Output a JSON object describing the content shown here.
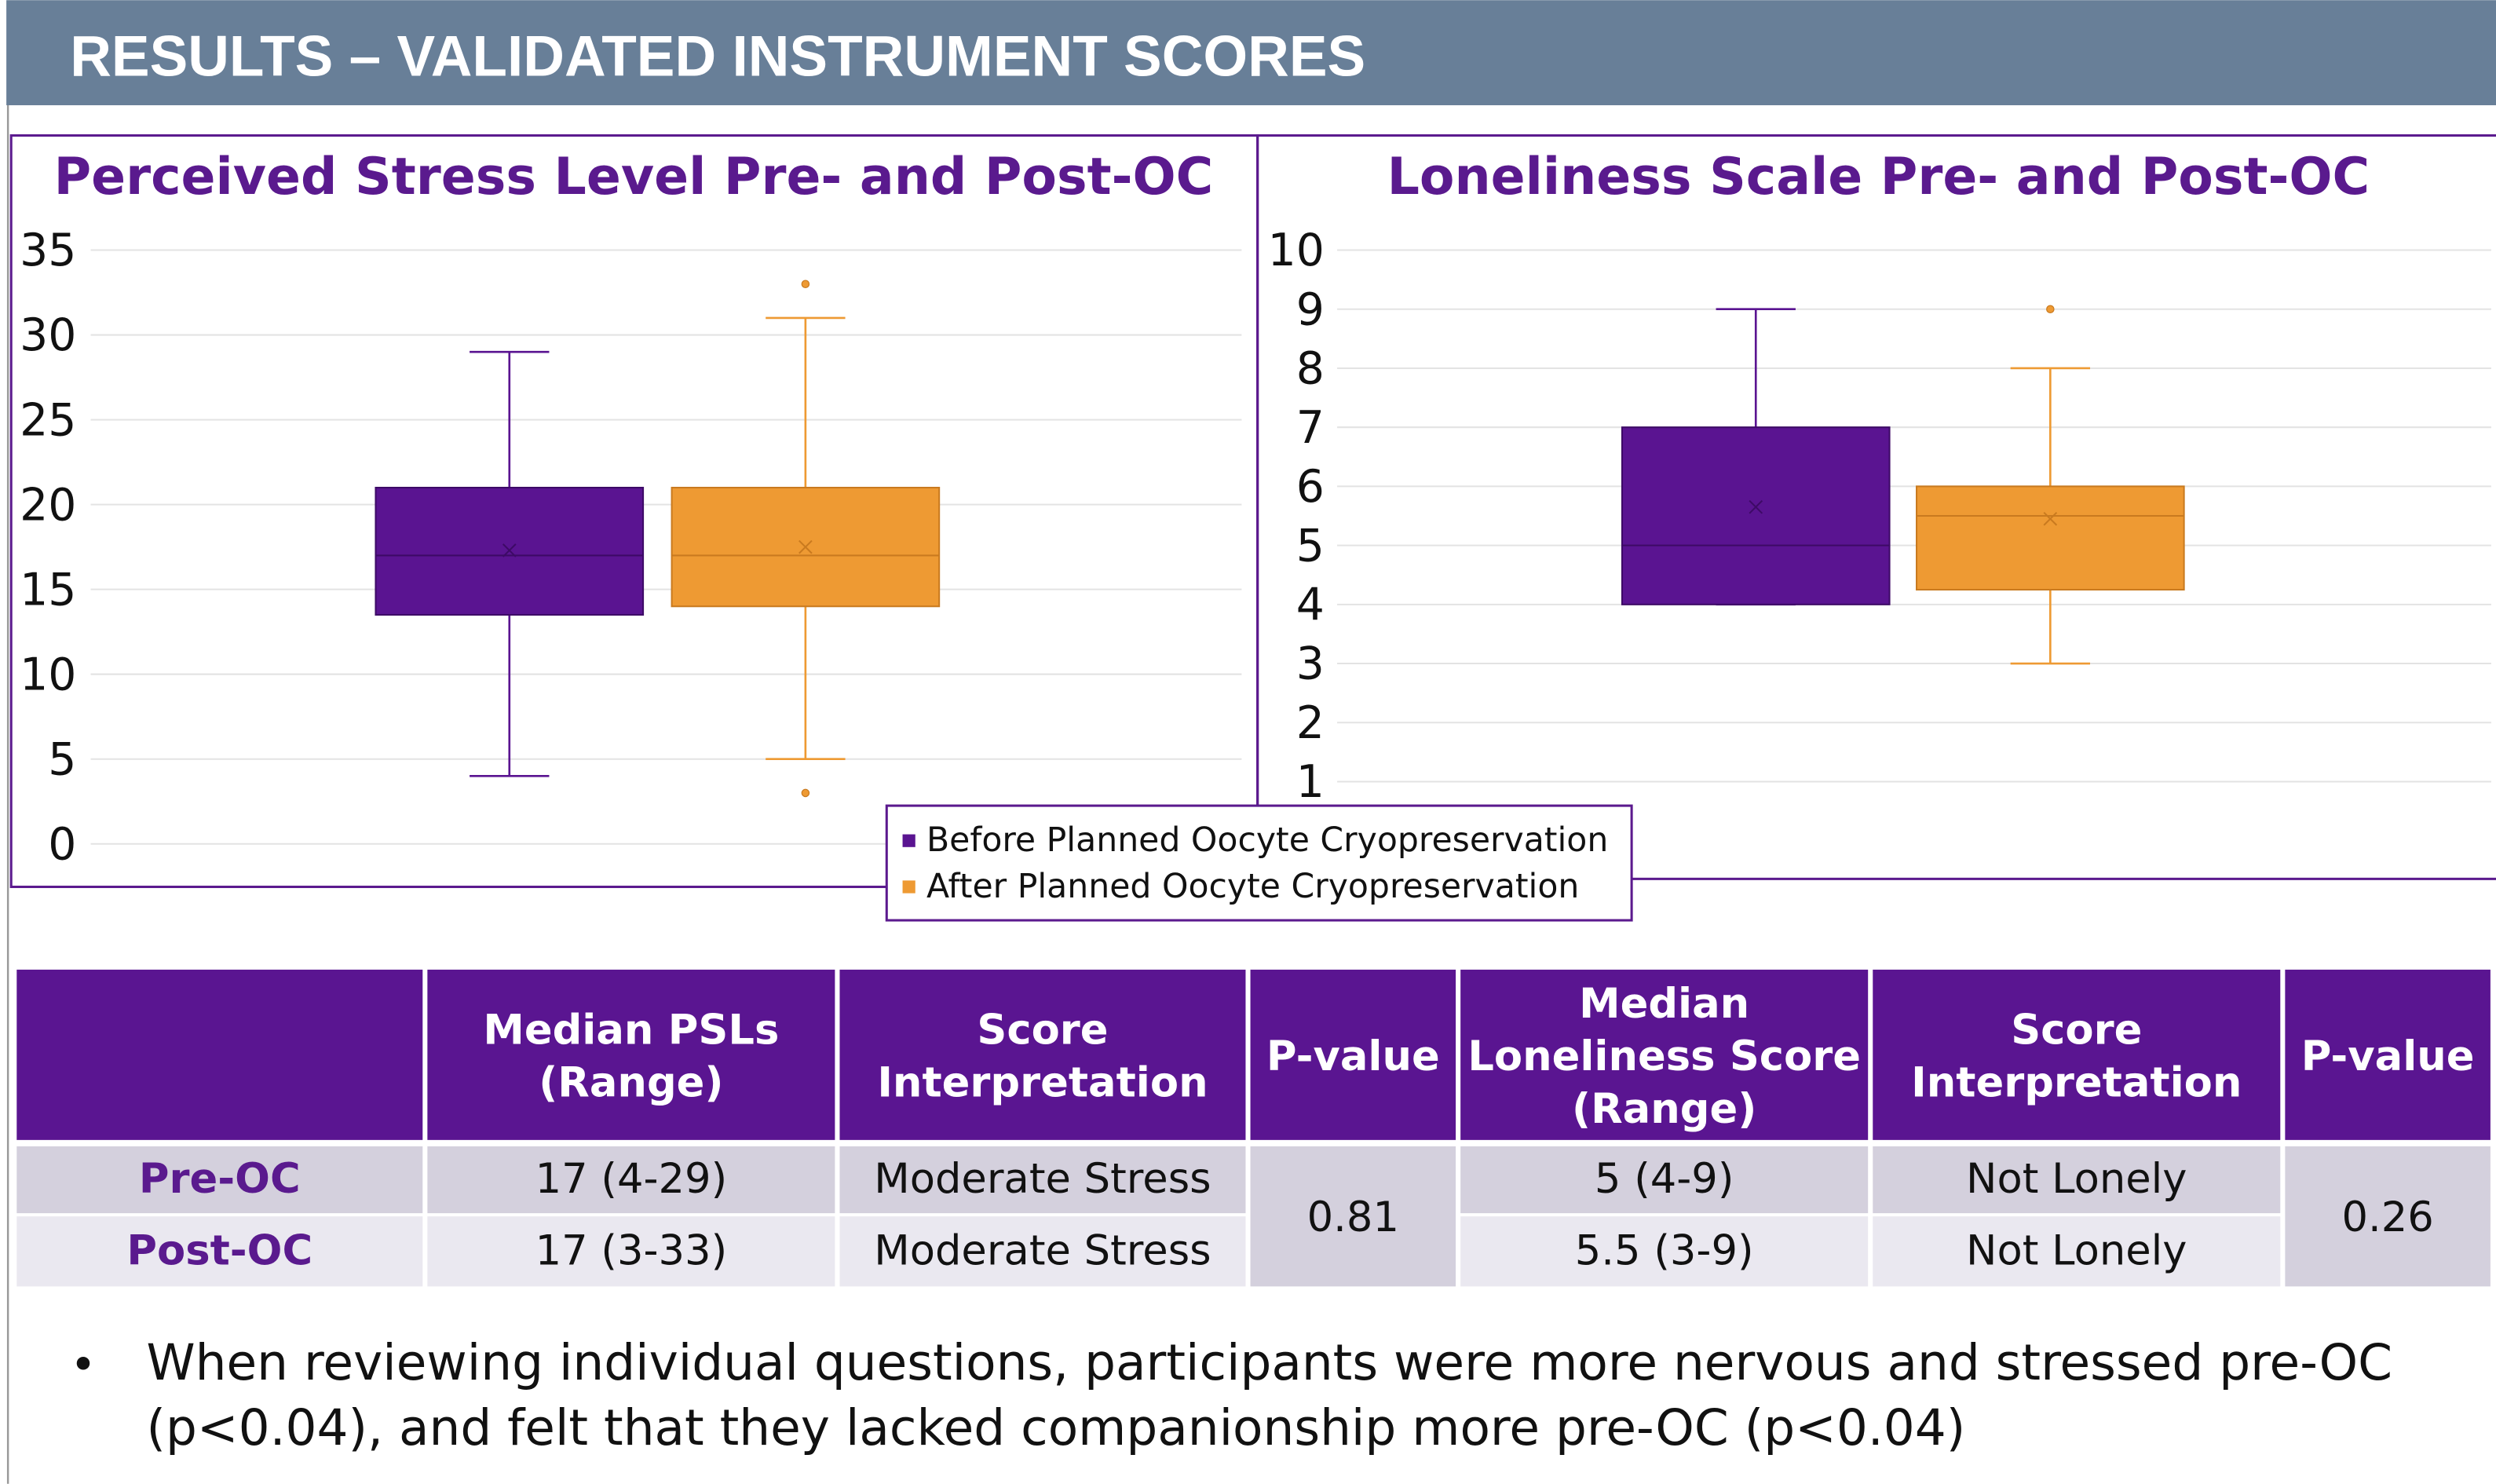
{
  "header": {
    "title": "RESULTS –  VALIDATED INSTRUMENT SCORES"
  },
  "chart_data": [
    {
      "type": "box",
      "title": "Perceived Stress Level Pre- and Post-OC",
      "ylim": [
        0,
        35
      ],
      "yticks": [
        0,
        5,
        10,
        15,
        20,
        25,
        30,
        35
      ],
      "grid": true,
      "series": [
        {
          "name": "Before Planned Oocyte Cryopreservation",
          "color": "#5a1491",
          "min": 4,
          "q1": 13.5,
          "median": 17,
          "q3": 21,
          "max": 29,
          "mean": 17.3,
          "outliers": []
        },
        {
          "name": "After Planned Oocyte Cryopreservation",
          "color": "#ee9a33",
          "min": 5,
          "q1": 14,
          "median": 17,
          "q3": 21,
          "max": 31,
          "mean": 17.5,
          "outliers": [
            3,
            33
          ]
        }
      ]
    },
    {
      "type": "box",
      "title": "Loneliness Scale Pre- and Post-OC",
      "ylim": [
        0,
        10
      ],
      "yticks": [
        1,
        2,
        3,
        4,
        5,
        6,
        7,
        8,
        9,
        10
      ],
      "grid": true,
      "series": [
        {
          "color": "#5a1491",
          "min": 4,
          "q1": 4,
          "median": 5,
          "q3": 7,
          "max": 9,
          "mean": 5.65,
          "outliers": []
        },
        {
          "color": "#ee9a33",
          "min": 3,
          "q1": 4.25,
          "median": 5.5,
          "q3": 6,
          "max": 8,
          "mean": 5.45,
          "outliers": [
            9
          ]
        }
      ]
    }
  ],
  "table": {
    "header": [
      [
        "Median PSLs",
        "(Range)"
      ],
      [
        "Score",
        "Interpretation"
      ],
      [
        "P-value"
      ],
      [
        "Median",
        "Loneliness Score",
        "(Range)"
      ],
      [
        "Score",
        "Interpretation"
      ],
      [
        "P-value"
      ]
    ],
    "rows": [
      {
        "label": "Pre-OC",
        "cells": [
          "17 (4-29)",
          "Moderate Stress",
          "5 (4-9)",
          "Not Lonely"
        ]
      },
      {
        "label": "Post-OC",
        "cells": [
          "17 (3-33)",
          "Moderate Stress",
          "5.5 (3-9)",
          "Not Lonely"
        ]
      }
    ],
    "pvalues": [
      "0.81",
      "0.26"
    ]
  },
  "bullet": {
    "symbol": "•",
    "lines": [
      "When reviewing individual questions, participants were more nervous and stressed pre-OC",
      "(p<0.04), and felt that they lacked companionship more pre-OC (p<0.04)"
    ]
  }
}
